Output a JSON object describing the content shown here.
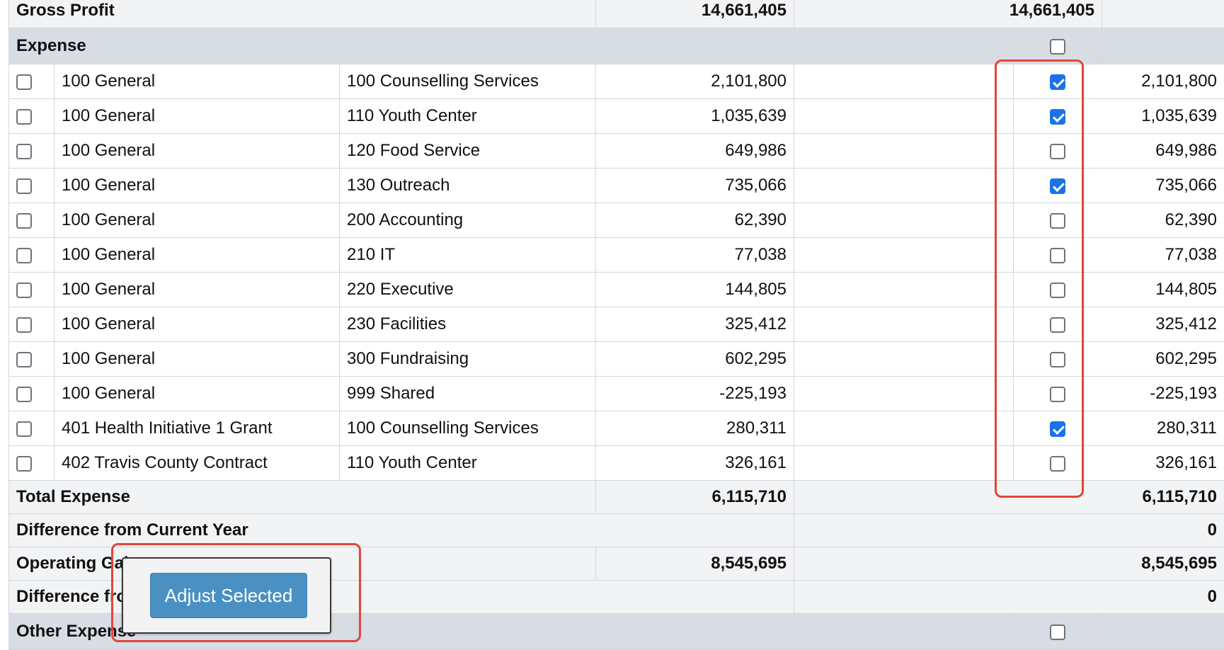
{
  "gross_profit": {
    "label": "Gross Profit",
    "current": "14,661,405",
    "adjusted": "14,661,405"
  },
  "expense": {
    "header": "Expense",
    "rows": [
      {
        "fund": "100 General",
        "dept": "100 Counselling Services",
        "current": "2,101,800",
        "adjusted": "2,101,800",
        "row_checked": false,
        "adjust_checked": true
      },
      {
        "fund": "100 General",
        "dept": "110 Youth Center",
        "current": "1,035,639",
        "adjusted": "1,035,639",
        "row_checked": false,
        "adjust_checked": true
      },
      {
        "fund": "100 General",
        "dept": "120 Food Service",
        "current": "649,986",
        "adjusted": "649,986",
        "row_checked": false,
        "adjust_checked": false
      },
      {
        "fund": "100 General",
        "dept": "130 Outreach",
        "current": "735,066",
        "adjusted": "735,066",
        "row_checked": false,
        "adjust_checked": true
      },
      {
        "fund": "100 General",
        "dept": "200 Accounting",
        "current": "62,390",
        "adjusted": "62,390",
        "row_checked": false,
        "adjust_checked": false
      },
      {
        "fund": "100 General",
        "dept": "210 IT",
        "current": "77,038",
        "adjusted": "77,038",
        "row_checked": false,
        "adjust_checked": false
      },
      {
        "fund": "100 General",
        "dept": "220 Executive",
        "current": "144,805",
        "adjusted": "144,805",
        "row_checked": false,
        "adjust_checked": false
      },
      {
        "fund": "100 General",
        "dept": "230 Facilities",
        "current": "325,412",
        "adjusted": "325,412",
        "row_checked": false,
        "adjust_checked": false
      },
      {
        "fund": "100 General",
        "dept": "300 Fundraising",
        "current": "602,295",
        "adjusted": "602,295",
        "row_checked": false,
        "adjust_checked": false
      },
      {
        "fund": "100 General",
        "dept": "999 Shared",
        "current": "-225,193",
        "adjusted": "-225,193",
        "row_checked": false,
        "adjust_checked": false
      },
      {
        "fund": "401 Health Initiative 1 Grant",
        "dept": "100 Counselling Services",
        "current": "280,311",
        "adjusted": "280,311",
        "row_checked": false,
        "adjust_checked": true
      },
      {
        "fund": "402 Travis County Contract",
        "dept": "110 Youth Center",
        "current": "326,161",
        "adjusted": "326,161",
        "row_checked": false,
        "adjust_checked": false
      }
    ]
  },
  "total_expense": {
    "label": "Total Expense",
    "current": "6,115,710",
    "adjusted": "6,115,710"
  },
  "difference_current_year_1": {
    "label": "Difference from Current Year",
    "adjusted": "0"
  },
  "operating_gain": {
    "label": "Operating Gain",
    "current": "8,545,695",
    "adjusted": "8,545,695"
  },
  "difference_current_year_2": {
    "label": "Difference from Current Year",
    "adjusted": "0"
  },
  "other_expense": {
    "header": "Other Expense"
  },
  "popup": {
    "adjust_label": "Adjust Selected"
  },
  "colors": {
    "accent": "#1a73e8",
    "highlight": "#e0463b",
    "button": "#4a90c2"
  }
}
